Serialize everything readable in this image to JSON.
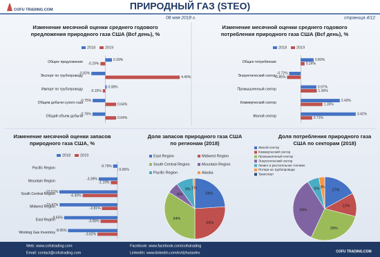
{
  "header": {
    "title": "ПРИРОДНЫЙ ГАЗ (STEO)",
    "date": "08 мая 2018 г.",
    "page": "страница 4/12",
    "logo": "COFU TRADING.COM"
  },
  "footer": {
    "web": "Web: www.cofutrading.com",
    "email": "Email: contact@cofutrading.com",
    "facebook": "Facebook: www.facebook.com/cofutrading",
    "linkedin": "LinkedIn: www.linkedin.com/in/dzhuravlev",
    "logo": "COFU TRADING.COM"
  },
  "chart_data": [
    {
      "type": "bar",
      "orientation": "horizontal",
      "title": [
        "Изменение месячной оценки среднего годового",
        "предложения природного газа США (Bcf день), %"
      ],
      "categories": [
        "Общее предложение",
        "Экспорт по трубопроводу",
        "Импорт по трубопроводу",
        "Общем добычи сухого газа",
        "Общий объем добычи"
      ],
      "series": [
        {
          "name": "2018",
          "color": "#4472c4",
          "values": [
            0.39,
            -0.83,
            0.08,
            -0.75,
            -0.76
          ],
          "value_labels": [
            "0.39%",
            "-0.83%",
            "0.08%",
            "-0.75%",
            "-0.76%"
          ]
        },
        {
          "name": "2019",
          "color": "#c0504d",
          "values": [
            -0.29,
            4.4,
            -0.15,
            0.64,
            0.64
          ],
          "value_labels": [
            "-0.29%",
            "4.40%",
            "-0.15%",
            "0.64%",
            "0.64%"
          ]
        }
      ],
      "xlim": [
        -1,
        4.6
      ]
    },
    {
      "type": "bar",
      "orientation": "horizontal",
      "title": [
        "Изменение месячной оценки среднего годового",
        "потребления природного газа США (Bcf день), %"
      ],
      "categories": [
        "Общее потребление",
        "Энергетический сектор",
        "Промышленный сектор",
        "Коммерческий сектор",
        "Жилой сектор"
      ],
      "series": [
        {
          "name": "2018",
          "color": "#4472c4",
          "values": [
            0.8,
            -0.72,
            0.97,
            2.43,
            3.42
          ],
          "value_labels": [
            "0.80%",
            "-0.72%",
            "0.97%",
            "2.43%",
            "3.42%"
          ]
        },
        {
          "name": "2019",
          "color": "#c0504d",
          "values": [
            0.24,
            -0.85,
            1.0,
            1.35,
            0.71
          ],
          "value_labels": [
            "0.24%",
            "-0.85%",
            "1.00%",
            "1.35%",
            "0.71%"
          ]
        }
      ],
      "xlim": [
        -1,
        4.5
      ]
    },
    {
      "type": "bar",
      "orientation": "horizontal",
      "title": [
        "Изменение месячной оценки запасов",
        "природного газа США, %"
      ],
      "categories": [
        "Pacific Region",
        "Mountain Region",
        "South Central Region",
        "Midwest Region",
        "East Region",
        "Working Gas Inventory"
      ],
      "series": [
        {
          "name": "2018",
          "color": "#4472c4",
          "values": [
            -0.79,
            -3.39,
            -10.51,
            -10.47,
            -9.65,
            -8.95
          ],
          "value_labels": [
            "-0.79%",
            "-3.39%",
            "-10.51%",
            "-10.47%",
            "-9.65%",
            "-8.95%"
          ]
        },
        {
          "name": "2019",
          "color": "#c0504d",
          "values": [
            0.06,
            -1.19,
            -6.3,
            -2.81,
            -3.05,
            -3.62
          ],
          "value_labels": [
            "0.06%",
            "-1.19%",
            "-6.30%",
            "-2.81%",
            "-3.05%",
            "-3.62%"
          ]
        }
      ],
      "xlim": [
        -11,
        1
      ]
    },
    {
      "type": "pie",
      "title": [
        "Доля запасов природного газа США",
        "по регионам (2018)"
      ],
      "categories": [
        "East Region",
        "Midwest Region",
        "South Central Region",
        "Mountain Region",
        "Pacific Region",
        "Alaska"
      ],
      "values": [
        24,
        26,
        34,
        6,
        9,
        1
      ],
      "value_labels": [
        "24%",
        "26%",
        "34%",
        "6%",
        "9%",
        "1%"
      ],
      "colors": [
        "#4472c4",
        "#c0504d",
        "#9bbb59",
        "#8064a2",
        "#4bacc6",
        "#f79646"
      ]
    },
    {
      "type": "pie",
      "title": [
        "Доля потребления природного газа",
        "США по секторам (2018)"
      ],
      "categories": [
        "Жилой сектор",
        "Коммерческий сектор",
        "Промышленный сектор",
        "Энергетический сектор",
        "Лизинг и растительное топливо",
        "Потери на трубопроводе",
        "Транспорт"
      ],
      "values": [
        17,
        12,
        28,
        34,
        6,
        3,
        0
      ],
      "value_labels": [
        "17%",
        "12%",
        "28%",
        "34%",
        "6%",
        "3%",
        null
      ],
      "colors": [
        "#4472c4",
        "#c0504d",
        "#9bbb59",
        "#8064a2",
        "#4bacc6",
        "#f79646",
        "#2c4d75"
      ]
    }
  ]
}
